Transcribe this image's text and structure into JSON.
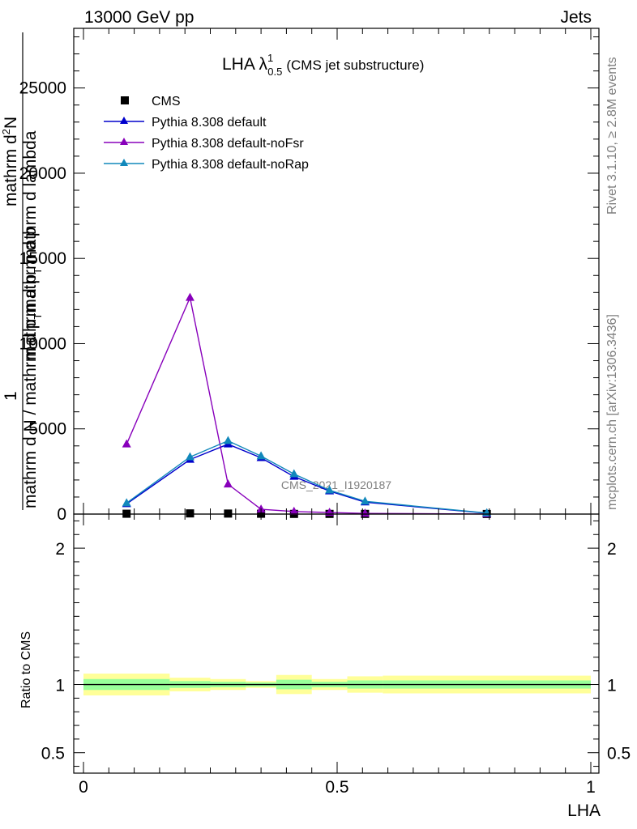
{
  "header": {
    "left_label": "13000 GeV pp",
    "right_label": "Jets"
  },
  "side_labels": {
    "rivet": "Rivet 3.1.10, ≥ 2.8M events",
    "mcplots": "mcplots.cern.ch [arXiv:1306.3436]"
  },
  "watermark": "CMS_2021_I1920187",
  "chart_data": [
    {
      "type": "line",
      "title_main": "LHA λ",
      "title_sup": "1",
      "title_sub": "0.5",
      "title_rest": "(CMS jet substructure)",
      "ylabel_parts": {
        "one": "1",
        "num1": "mathrm d",
        "num1_sup": "2",
        "num1_rest": "N",
        "den1": "mathrm d p",
        "den1_sub": "T",
        "den1_rest": " mathrm d lambda",
        "den_full": "mathrm d N / mathrm d p",
        "den_full_sub": "T",
        "den_full_rest": "mathrm d p"
      },
      "xlim": [
        0,
        1
      ],
      "ylim": [
        0,
        28500
      ],
      "y_ticks": [
        0,
        5000,
        10000,
        15000,
        20000,
        25000
      ],
      "y_tick_labels": [
        "0",
        "5000",
        "10000",
        "15000",
        "20000",
        "25000"
      ],
      "x": [
        0.085,
        0.21,
        0.285,
        0.35,
        0.415,
        0.485,
        0.555,
        0.795
      ],
      "series": [
        {
          "name": "CMS",
          "color": "#000000",
          "marker": "square",
          "values": [
            20,
            40,
            30,
            20,
            10,
            10,
            10,
            5
          ]
        },
        {
          "name": "Pythia 8.308 default",
          "color": "#0000cc",
          "marker": "triangle",
          "values": [
            600,
            3200,
            4100,
            3300,
            2200,
            1350,
            700,
            50
          ]
        },
        {
          "name": "Pythia 8.308 default-noFsr",
          "color": "#8800bb",
          "marker": "triangle",
          "values": [
            4100,
            12700,
            1750,
            280,
            150,
            90,
            40,
            5
          ]
        },
        {
          "name": "Pythia 8.308 default-noRap",
          "color": "#1188bb",
          "marker": "triangle",
          "values": [
            650,
            3350,
            4300,
            3400,
            2350,
            1400,
            750,
            60
          ]
        }
      ]
    },
    {
      "type": "area",
      "ylabel": "Ratio to CMS",
      "xlabel": "LHA",
      "xlim": [
        0,
        1
      ],
      "ylim": [
        0.35,
        2.25
      ],
      "y_ticks": [
        0.5,
        1,
        2
      ],
      "y_tick_labels": [
        "0.5",
        "1",
        "2"
      ],
      "x_ticks": [
        0,
        0.5,
        1
      ],
      "x_tick_labels": [
        "0",
        "0.5",
        "1"
      ],
      "reference": 1.0,
      "bins": [
        {
          "lo": 0.0,
          "hi": 0.17,
          "yellow": [
            0.92,
            1.08
          ],
          "green": [
            0.96,
            1.04
          ]
        },
        {
          "lo": 0.17,
          "hi": 0.25,
          "yellow": [
            0.95,
            1.05
          ],
          "green": [
            0.975,
            1.025
          ]
        },
        {
          "lo": 0.25,
          "hi": 0.32,
          "yellow": [
            0.96,
            1.04
          ],
          "green": [
            0.98,
            1.02
          ]
        },
        {
          "lo": 0.32,
          "hi": 0.38,
          "yellow": [
            0.975,
            1.025
          ],
          "green": [
            0.985,
            1.015
          ]
        },
        {
          "lo": 0.38,
          "hi": 0.45,
          "yellow": [
            0.93,
            1.07
          ],
          "green": [
            0.965,
            1.035
          ]
        },
        {
          "lo": 0.45,
          "hi": 0.52,
          "yellow": [
            0.96,
            1.04
          ],
          "green": [
            0.98,
            1.02
          ]
        },
        {
          "lo": 0.52,
          "hi": 0.59,
          "yellow": [
            0.94,
            1.06
          ],
          "green": [
            0.97,
            1.03
          ]
        },
        {
          "lo": 0.59,
          "hi": 1.0,
          "yellow": [
            0.935,
            1.065
          ],
          "green": [
            0.97,
            1.03
          ]
        }
      ],
      "colors": {
        "yellow": "#ffff99",
        "green": "#99ff99"
      }
    }
  ]
}
